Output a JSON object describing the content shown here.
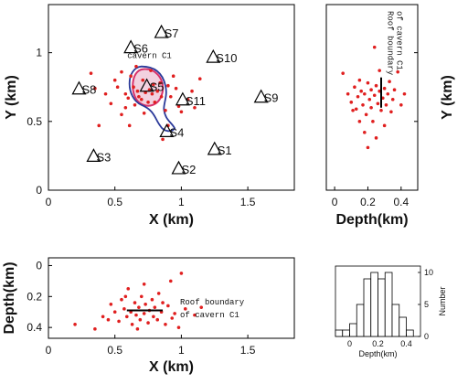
{
  "chart_data": [
    {
      "panel": "map",
      "type": "scatter",
      "xlabel": "X (km)",
      "ylabel": "Y (km)",
      "xlim": [
        0,
        1.85
      ],
      "ylim": [
        0,
        1.35
      ],
      "xticks": [
        "0",
        "0.5",
        "1",
        "1.5"
      ],
      "yticks": [
        "0",
        "0.5",
        "1"
      ],
      "annotation": "cavern C1",
      "cavern_outline_color": "#2b3a9a",
      "cavern_fill_color": "#d8326b",
      "station_color": "#000000",
      "point_color": "#e01f1f",
      "stations": [
        {
          "label": "S1",
          "x": 1.25,
          "y": 0.3
        },
        {
          "label": "S2",
          "x": 0.98,
          "y": 0.16
        },
        {
          "label": "S3",
          "x": 0.34,
          "y": 0.25
        },
        {
          "label": "S4",
          "x": 0.89,
          "y": 0.43
        },
        {
          "label": "S5",
          "x": 0.74,
          "y": 0.76
        },
        {
          "label": "S6",
          "x": 0.62,
          "y": 1.04
        },
        {
          "label": "S7",
          "x": 0.85,
          "y": 1.15
        },
        {
          "label": "S8",
          "x": 0.23,
          "y": 0.74
        },
        {
          "label": "S9",
          "x": 1.6,
          "y": 0.68
        },
        {
          "label": "S10",
          "x": 1.24,
          "y": 0.97
        },
        {
          "label": "S11",
          "x": 1.01,
          "y": 0.66
        }
      ],
      "events": [
        {
          "x": 0.32,
          "y": 0.85
        },
        {
          "x": 0.35,
          "y": 0.74
        },
        {
          "x": 0.38,
          "y": 0.47
        },
        {
          "x": 0.47,
          "y": 0.63
        },
        {
          "x": 0.5,
          "y": 0.8
        },
        {
          "x": 0.52,
          "y": 0.75
        },
        {
          "x": 0.55,
          "y": 0.55
        },
        {
          "x": 0.58,
          "y": 0.7
        },
        {
          "x": 0.6,
          "y": 0.67
        },
        {
          "x": 0.62,
          "y": 0.83
        },
        {
          "x": 0.64,
          "y": 0.75
        },
        {
          "x": 0.65,
          "y": 0.62
        },
        {
          "x": 0.67,
          "y": 0.72
        },
        {
          "x": 0.68,
          "y": 0.68
        },
        {
          "x": 0.7,
          "y": 0.66
        },
        {
          "x": 0.71,
          "y": 0.8
        },
        {
          "x": 0.73,
          "y": 0.71
        },
        {
          "x": 0.75,
          "y": 0.64
        },
        {
          "x": 0.76,
          "y": 0.73
        },
        {
          "x": 0.78,
          "y": 0.7
        },
        {
          "x": 0.79,
          "y": 0.77
        },
        {
          "x": 0.8,
          "y": 0.64
        },
        {
          "x": 0.82,
          "y": 0.72
        },
        {
          "x": 0.84,
          "y": 0.78
        },
        {
          "x": 0.85,
          "y": 0.68
        },
        {
          "x": 0.88,
          "y": 0.58
        },
        {
          "x": 0.9,
          "y": 0.47
        },
        {
          "x": 0.86,
          "y": 0.37
        },
        {
          "x": 0.92,
          "y": 0.68
        },
        {
          "x": 0.96,
          "y": 0.74
        },
        {
          "x": 0.98,
          "y": 0.61
        },
        {
          "x": 1.0,
          "y": 0.57
        },
        {
          "x": 1.05,
          "y": 0.66
        },
        {
          "x": 1.1,
          "y": 0.6
        },
        {
          "x": 1.14,
          "y": 0.81
        },
        {
          "x": 0.61,
          "y": 0.47
        },
        {
          "x": 0.72,
          "y": 0.56
        },
        {
          "x": 0.94,
          "y": 0.83
        },
        {
          "x": 0.55,
          "y": 0.86
        },
        {
          "x": 0.43,
          "y": 0.7
        },
        {
          "x": 0.66,
          "y": 0.9
        },
        {
          "x": 0.9,
          "y": 0.76
        },
        {
          "x": 1.08,
          "y": 0.72
        },
        {
          "x": 0.77,
          "y": 0.87
        },
        {
          "x": 0.58,
          "y": 0.6
        }
      ]
    },
    {
      "panel": "depth-vs-y",
      "type": "scatter",
      "xlabel": "Depth(km)",
      "ylabel": "Y (km)",
      "xlim": [
        -0.05,
        0.5
      ],
      "ylim": [
        0,
        1.35
      ],
      "xticks": [
        "0",
        "0.2",
        "0.4"
      ],
      "annotation": "Roof boundary of cavern C1",
      "roof_depth": 0.28,
      "roof_y": [
        0.6,
        0.82
      ],
      "events": [
        {
          "x": 0.05,
          "y": 0.85
        },
        {
          "x": 0.08,
          "y": 0.7
        },
        {
          "x": 0.1,
          "y": 0.64
        },
        {
          "x": 0.12,
          "y": 0.75
        },
        {
          "x": 0.13,
          "y": 0.59
        },
        {
          "x": 0.14,
          "y": 0.68
        },
        {
          "x": 0.15,
          "y": 0.8
        },
        {
          "x": 0.16,
          "y": 0.72
        },
        {
          "x": 0.17,
          "y": 0.62
        },
        {
          "x": 0.18,
          "y": 0.7
        },
        {
          "x": 0.19,
          "y": 0.55
        },
        {
          "x": 0.2,
          "y": 0.78
        },
        {
          "x": 0.21,
          "y": 0.66
        },
        {
          "x": 0.22,
          "y": 0.73
        },
        {
          "x": 0.22,
          "y": 0.6
        },
        {
          "x": 0.23,
          "y": 0.5
        },
        {
          "x": 0.24,
          "y": 0.69
        },
        {
          "x": 0.25,
          "y": 0.76
        },
        {
          "x": 0.26,
          "y": 0.63
        },
        {
          "x": 0.27,
          "y": 0.72
        },
        {
          "x": 0.28,
          "y": 0.58
        },
        {
          "x": 0.29,
          "y": 0.67
        },
        {
          "x": 0.3,
          "y": 0.74
        },
        {
          "x": 0.3,
          "y": 0.47
        },
        {
          "x": 0.31,
          "y": 0.62
        },
        {
          "x": 0.32,
          "y": 0.7
        },
        {
          "x": 0.33,
          "y": 0.79
        },
        {
          "x": 0.34,
          "y": 0.57
        },
        {
          "x": 0.35,
          "y": 0.66
        },
        {
          "x": 0.36,
          "y": 0.73
        },
        {
          "x": 0.38,
          "y": 0.86
        },
        {
          "x": 0.4,
          "y": 0.62
        },
        {
          "x": 0.42,
          "y": 0.7
        },
        {
          "x": 0.18,
          "y": 0.42
        },
        {
          "x": 0.25,
          "y": 0.38
        },
        {
          "x": 0.2,
          "y": 0.31
        },
        {
          "x": 0.27,
          "y": 0.87
        },
        {
          "x": 0.15,
          "y": 0.5
        },
        {
          "x": 0.11,
          "y": 0.58
        },
        {
          "x": 0.24,
          "y": 1.04
        }
      ]
    },
    {
      "panel": "depth-vs-x",
      "type": "scatter",
      "xlabel": "X (km)",
      "ylabel": "Depth(km)",
      "xlim": [
        0,
        1.85
      ],
      "ylim": [
        -0.05,
        0.47
      ],
      "xticks": [
        "0",
        "0.5",
        "1",
        "1.5"
      ],
      "yticks": [
        "0",
        "0.2",
        "0.4"
      ],
      "annotation": "Roof boundary of cavern C1",
      "roof_depth": 0.29,
      "roof_x": [
        0.59,
        0.86
      ],
      "events": [
        {
          "x": 0.2,
          "y": 0.38
        },
        {
          "x": 0.35,
          "y": 0.41
        },
        {
          "x": 0.41,
          "y": 0.33
        },
        {
          "x": 0.47,
          "y": 0.25
        },
        {
          "x": 0.5,
          "y": 0.3
        },
        {
          "x": 0.53,
          "y": 0.36
        },
        {
          "x": 0.55,
          "y": 0.22
        },
        {
          "x": 0.57,
          "y": 0.28
        },
        {
          "x": 0.59,
          "y": 0.33
        },
        {
          "x": 0.6,
          "y": 0.15
        },
        {
          "x": 0.62,
          "y": 0.3
        },
        {
          "x": 0.63,
          "y": 0.38
        },
        {
          "x": 0.65,
          "y": 0.24
        },
        {
          "x": 0.66,
          "y": 0.32
        },
        {
          "x": 0.68,
          "y": 0.27
        },
        {
          "x": 0.69,
          "y": 0.35
        },
        {
          "x": 0.7,
          "y": 0.2
        },
        {
          "x": 0.72,
          "y": 0.31
        },
        {
          "x": 0.73,
          "y": 0.25
        },
        {
          "x": 0.75,
          "y": 0.37
        },
        {
          "x": 0.76,
          "y": 0.29
        },
        {
          "x": 0.78,
          "y": 0.22
        },
        {
          "x": 0.79,
          "y": 0.33
        },
        {
          "x": 0.8,
          "y": 0.27
        },
        {
          "x": 0.82,
          "y": 0.35
        },
        {
          "x": 0.83,
          "y": 0.18
        },
        {
          "x": 0.85,
          "y": 0.3
        },
        {
          "x": 0.86,
          "y": 0.24
        },
        {
          "x": 0.88,
          "y": 0.38
        },
        {
          "x": 0.9,
          "y": 0.26
        },
        {
          "x": 0.92,
          "y": 0.1
        },
        {
          "x": 0.95,
          "y": 0.31
        },
        {
          "x": 0.98,
          "y": 0.4
        },
        {
          "x": 1.0,
          "y": 0.05
        },
        {
          "x": 1.03,
          "y": 0.28
        },
        {
          "x": 1.1,
          "y": 0.32
        },
        {
          "x": 1.15,
          "y": 0.27
        },
        {
          "x": 0.72,
          "y": 0.12
        },
        {
          "x": 0.58,
          "y": 0.2
        },
        {
          "x": 0.67,
          "y": 0.41
        },
        {
          "x": 0.93,
          "y": 0.34
        },
        {
          "x": 0.45,
          "y": 0.35
        }
      ]
    },
    {
      "panel": "depth-histogram",
      "type": "bar",
      "xlabel": "Depth(km)",
      "ylabel": "Number",
      "xlim": [
        -0.1,
        0.5
      ],
      "ylim": [
        0,
        11
      ],
      "xticks": [
        "0",
        "0.2",
        "0.4"
      ],
      "yticks": [
        "0",
        "5",
        "10"
      ],
      "bin_edges": [
        -0.1,
        -0.05,
        0.0,
        0.05,
        0.1,
        0.15,
        0.2,
        0.25,
        0.3,
        0.35,
        0.4,
        0.45
      ],
      "values": [
        1,
        1,
        2,
        5,
        9,
        10,
        9,
        10,
        5,
        3,
        1
      ]
    }
  ]
}
